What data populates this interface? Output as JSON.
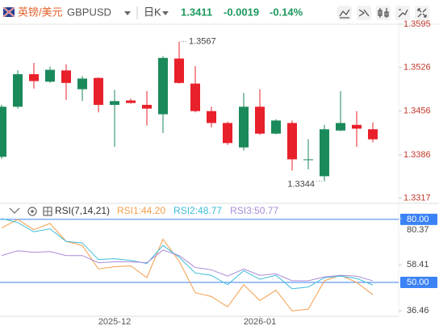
{
  "header": {
    "pair": "英镑/美元",
    "symbol": "GBPUSD",
    "period": "日K",
    "price": "1.3411",
    "change": "-0.0019",
    "change_pct": "-0.14%"
  },
  "chart_data": [
    {
      "type": "candlestick",
      "up_color": "#1b8a5a",
      "down_color": "#e8202a",
      "open": [
        1.3383,
        1.3463,
        1.3515,
        1.3503,
        1.3521,
        1.3491,
        1.3509,
        1.3466,
        1.3473,
        1.3466,
        1.3451,
        1.354,
        1.35,
        1.3456,
        1.3437,
        1.3398,
        1.3463,
        1.342,
        1.3437,
        1.3378,
        1.3352,
        1.3425,
        1.3434,
        1.3427
      ],
      "high": [
        1.3466,
        1.3521,
        1.3533,
        1.3527,
        1.3531,
        1.3512,
        1.351,
        1.349,
        1.3476,
        1.3488,
        1.3544,
        1.3567,
        1.3528,
        1.3463,
        1.3439,
        1.3485,
        1.3491,
        1.3443,
        1.3441,
        1.3411,
        1.3434,
        1.3488,
        1.3456,
        1.3438
      ],
      "low": [
        1.338,
        1.346,
        1.3492,
        1.3501,
        1.3474,
        1.3472,
        1.3454,
        1.3399,
        1.3468,
        1.3433,
        1.3421,
        1.35,
        1.3454,
        1.343,
        1.3402,
        1.3393,
        1.3418,
        1.3419,
        1.3361,
        1.3363,
        1.3344,
        1.3424,
        1.3399,
        1.3406
      ],
      "close": [
        1.3463,
        1.3515,
        1.3504,
        1.3522,
        1.3501,
        1.3508,
        1.3466,
        1.3472,
        1.3469,
        1.346,
        1.3541,
        1.3501,
        1.3456,
        1.3437,
        1.3405,
        1.3463,
        1.342,
        1.3441,
        1.3379,
        1.3379,
        1.3427,
        1.3437,
        1.3428,
        1.3411
      ],
      "ylim": [
        1.331,
        1.36
      ],
      "yticks": [
        1.3595,
        1.3526,
        1.3456,
        1.3386,
        1.3317
      ],
      "high_label": "1.3567",
      "low_label": "1.3344",
      "grid": false
    },
    {
      "type": "line",
      "legend_title": "RSI(7,14,21)",
      "categories": [
        null,
        null,
        null,
        null,
        null,
        null,
        null,
        "2025-12",
        null,
        null,
        null,
        null,
        null,
        null,
        null,
        null,
        "2026-01",
        null,
        null,
        null,
        null,
        null,
        null,
        null
      ],
      "series": [
        {
          "name": "RSI1:44.20",
          "color": "#f2a04c",
          "values": [
            75.9,
            80.0,
            75.1,
            78.1,
            69.5,
            67.6,
            56.4,
            57.5,
            57.9,
            52.3,
            70.6,
            60.1,
            45.1,
            43.3,
            38.4,
            48.9,
            41.4,
            46.3,
            36.46,
            37.3,
            50.8,
            53.4,
            50.0,
            44.2
          ]
        },
        {
          "name": "RSI2:48.77",
          "color": "#3bbcd9",
          "values": [
            80.37,
            78.5,
            74.1,
            75.5,
            69.5,
            68.8,
            60.9,
            61.3,
            60.5,
            59.0,
            67.6,
            62.0,
            54.5,
            53.4,
            48.9,
            55.6,
            51.5,
            53.4,
            47.0,
            47.8,
            52.3,
            53.0,
            51.9,
            48.77
          ]
        },
        {
          "name": "RSI3:50.77",
          "color": "#a98bd8",
          "values": [
            62.8,
            65.1,
            64.3,
            64.7,
            62.8,
            62.8,
            59.4,
            59.8,
            59.8,
            59.4,
            65.4,
            62.8,
            57.1,
            56.0,
            53.0,
            56.4,
            53.4,
            54.1,
            50.8,
            50.8,
            52.6,
            53.4,
            53.0,
            50.77
          ]
        }
      ],
      "ylim": [
        33.9,
        81.5
      ],
      "yticks": [
        80.37,
        58.41,
        36.46
      ],
      "reference_lines": [
        {
          "value": 80,
          "label": "80.00"
        },
        {
          "value": 50,
          "label": "50.00"
        }
      ],
      "reference_color": "#3b82f6",
      "grid": false
    }
  ]
}
